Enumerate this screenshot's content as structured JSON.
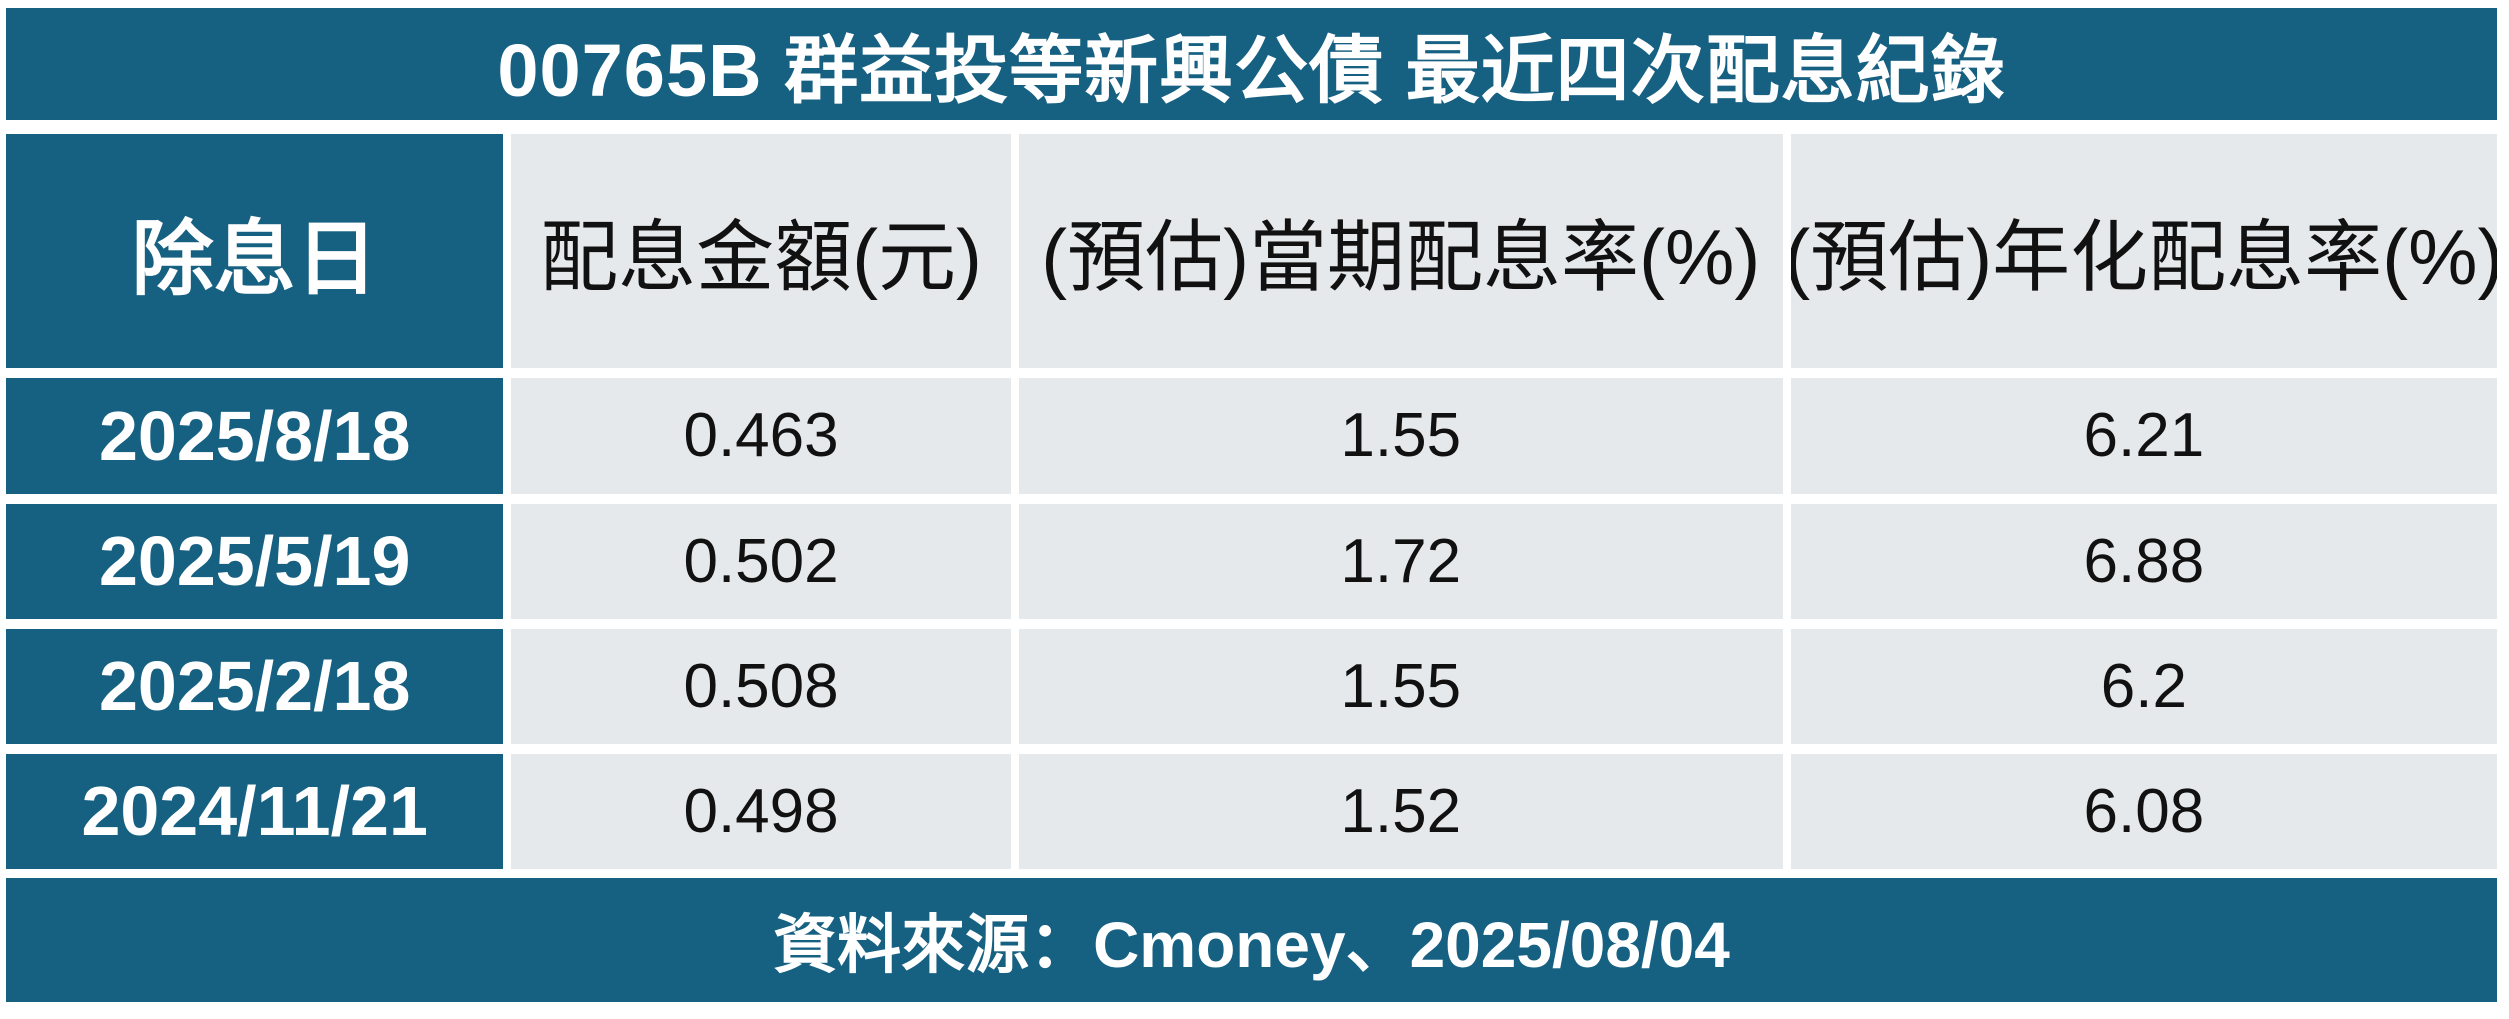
{
  "title": "00765B 群益投等新興公債 最近四次配息紀錄",
  "table": {
    "columns": [
      "除息日",
      "配息金額(元)",
      "(預估)當期配息率(%)",
      "(預估)年化配息率(%)"
    ],
    "rows": [
      [
        "2025/8/18",
        "0.463",
        "1.55",
        "6.21"
      ],
      [
        "2025/5/19",
        "0.502",
        "1.72",
        "6.88"
      ],
      [
        "2025/2/18",
        "0.508",
        "1.55",
        "6.2"
      ],
      [
        "2024/11/21",
        "0.498",
        "1.52",
        "6.08"
      ]
    ]
  },
  "footer": {
    "source_text": "資料來源：Cmoney、2025/08/04"
  },
  "colors": {
    "teal": "#166082",
    "cell_gray": "#E6E9EB",
    "title_text": "#FFFFFF",
    "body_text": "#111111",
    "gutter_white": "#FFFFFF"
  },
  "chart_data": {
    "type": "table",
    "title": "00765B 群益投等新興公債 最近四次配息紀錄",
    "columns": [
      "除息日",
      "配息金額(元)",
      "(預估)當期配息率(%)",
      "(預估)年化配息率(%)"
    ],
    "rows": [
      [
        "2025/8/18",
        0.463,
        1.55,
        6.21
      ],
      [
        "2025/5/19",
        0.502,
        1.72,
        6.88
      ],
      [
        "2025/2/18",
        0.508,
        1.55,
        6.2
      ],
      [
        "2024/11/21",
        0.498,
        1.52,
        6.08
      ]
    ],
    "source": "資料來源：Cmoney、2025/08/04",
    "layout": "header row on top; first column teal with white bold text; data cells light gray with black text; white gutters between all cells"
  }
}
